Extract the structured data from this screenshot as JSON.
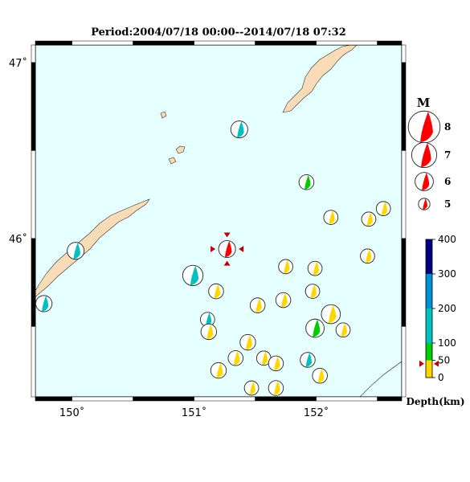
{
  "title": "Period:2004/07/18 00:00--2014/07/18 07:32",
  "colors": {
    "sea": "#e6ffff",
    "land": "#f8dcb7",
    "shallow": "#ffd700",
    "mid": "#00cc00",
    "intermediate": "#00c0c0",
    "deep_mid": "#0090d0",
    "deep": "#000080",
    "selected": "#ff0000"
  },
  "map": {
    "lon_range": [
      149.7,
      152.7
    ],
    "lat_range": [
      45.1,
      47.1
    ],
    "lon_ticks": [
      {
        "value": 150,
        "label": "150˚"
      },
      {
        "value": 151,
        "label": "151˚"
      },
      {
        "value": 152,
        "label": "152˚"
      }
    ],
    "lat_ticks": [
      {
        "value": 46,
        "label": "46˚"
      },
      {
        "value": 47,
        "label": "47˚"
      }
    ]
  },
  "events": [
    {
      "lon": 151.37,
      "lat": 46.62,
      "mag": 5.8,
      "depth": 130,
      "fill": "intermediate"
    },
    {
      "lon": 151.92,
      "lat": 46.32,
      "mag": 5.5,
      "depth": 80,
      "fill": "mid"
    },
    {
      "lon": 152.12,
      "lat": 46.12,
      "mag": 5.4,
      "depth": 20,
      "fill": "shallow"
    },
    {
      "lon": 152.43,
      "lat": 46.11,
      "mag": 5.4,
      "depth": 20,
      "fill": "shallow"
    },
    {
      "lon": 152.55,
      "lat": 46.17,
      "mag": 5.4,
      "depth": 20,
      "fill": "shallow"
    },
    {
      "lon": 150.03,
      "lat": 45.93,
      "mag": 5.8,
      "depth": 130,
      "fill": "intermediate"
    },
    {
      "lon": 149.77,
      "lat": 45.63,
      "mag": 5.7,
      "depth": 130,
      "fill": "intermediate"
    },
    {
      "lon": 151.27,
      "lat": 45.94,
      "mag": 5.8,
      "depth": 40,
      "fill": "selected"
    },
    {
      "lon": 150.99,
      "lat": 45.79,
      "mag": 6.3,
      "depth": 130,
      "fill": "intermediate"
    },
    {
      "lon": 151.18,
      "lat": 45.7,
      "mag": 5.5,
      "depth": 20,
      "fill": "shallow"
    },
    {
      "lon": 151.75,
      "lat": 45.84,
      "mag": 5.4,
      "depth": 20,
      "fill": "shallow"
    },
    {
      "lon": 151.99,
      "lat": 45.83,
      "mag": 5.4,
      "depth": 20,
      "fill": "shallow"
    },
    {
      "lon": 152.42,
      "lat": 45.9,
      "mag": 5.4,
      "depth": 20,
      "fill": "shallow"
    },
    {
      "lon": 151.97,
      "lat": 45.7,
      "mag": 5.4,
      "depth": 20,
      "fill": "shallow"
    },
    {
      "lon": 151.73,
      "lat": 45.65,
      "mag": 5.5,
      "depth": 20,
      "fill": "shallow"
    },
    {
      "lon": 151.52,
      "lat": 45.62,
      "mag": 5.5,
      "depth": 20,
      "fill": "shallow"
    },
    {
      "lon": 151.11,
      "lat": 45.54,
      "mag": 5.4,
      "depth": 130,
      "fill": "intermediate"
    },
    {
      "lon": 151.12,
      "lat": 45.47,
      "mag": 5.6,
      "depth": 20,
      "fill": "shallow"
    },
    {
      "lon": 152.12,
      "lat": 45.57,
      "mag": 6.1,
      "depth": 20,
      "fill": "shallow"
    },
    {
      "lon": 151.99,
      "lat": 45.49,
      "mag": 6.0,
      "depth": 80,
      "fill": "mid"
    },
    {
      "lon": 152.22,
      "lat": 45.48,
      "mag": 5.4,
      "depth": 20,
      "fill": "shallow"
    },
    {
      "lon": 151.44,
      "lat": 45.41,
      "mag": 5.6,
      "depth": 20,
      "fill": "shallow"
    },
    {
      "lon": 151.34,
      "lat": 45.32,
      "mag": 5.5,
      "depth": 20,
      "fill": "shallow"
    },
    {
      "lon": 151.57,
      "lat": 45.32,
      "mag": 5.4,
      "depth": 20,
      "fill": "shallow"
    },
    {
      "lon": 151.67,
      "lat": 45.29,
      "mag": 5.5,
      "depth": 20,
      "fill": "shallow"
    },
    {
      "lon": 151.93,
      "lat": 45.31,
      "mag": 5.5,
      "depth": 130,
      "fill": "intermediate"
    },
    {
      "lon": 151.2,
      "lat": 45.25,
      "mag": 5.6,
      "depth": 20,
      "fill": "shallow"
    },
    {
      "lon": 152.03,
      "lat": 45.22,
      "mag": 5.5,
      "depth": 20,
      "fill": "shallow"
    },
    {
      "lon": 151.47,
      "lat": 45.15,
      "mag": 5.4,
      "depth": 20,
      "fill": "shallow"
    },
    {
      "lon": 151.67,
      "lat": 45.15,
      "mag": 5.5,
      "depth": 20,
      "fill": "shallow"
    }
  ],
  "legend": {
    "title": "M",
    "items": [
      {
        "label": "8",
        "mag": 8
      },
      {
        "label": "7",
        "mag": 7
      },
      {
        "label": "6",
        "mag": 6
      },
      {
        "label": "5",
        "mag": 5
      }
    ]
  },
  "depth_scale": {
    "label": "Depth(km)",
    "ticks": [
      {
        "value": 0,
        "label": "0"
      },
      {
        "value": 50,
        "label": "50"
      },
      {
        "value": 100,
        "label": "100"
      },
      {
        "value": 200,
        "label": "200"
      },
      {
        "value": 300,
        "label": "300"
      },
      {
        "value": 400,
        "label": "400"
      }
    ],
    "marker_depth": 40
  }
}
